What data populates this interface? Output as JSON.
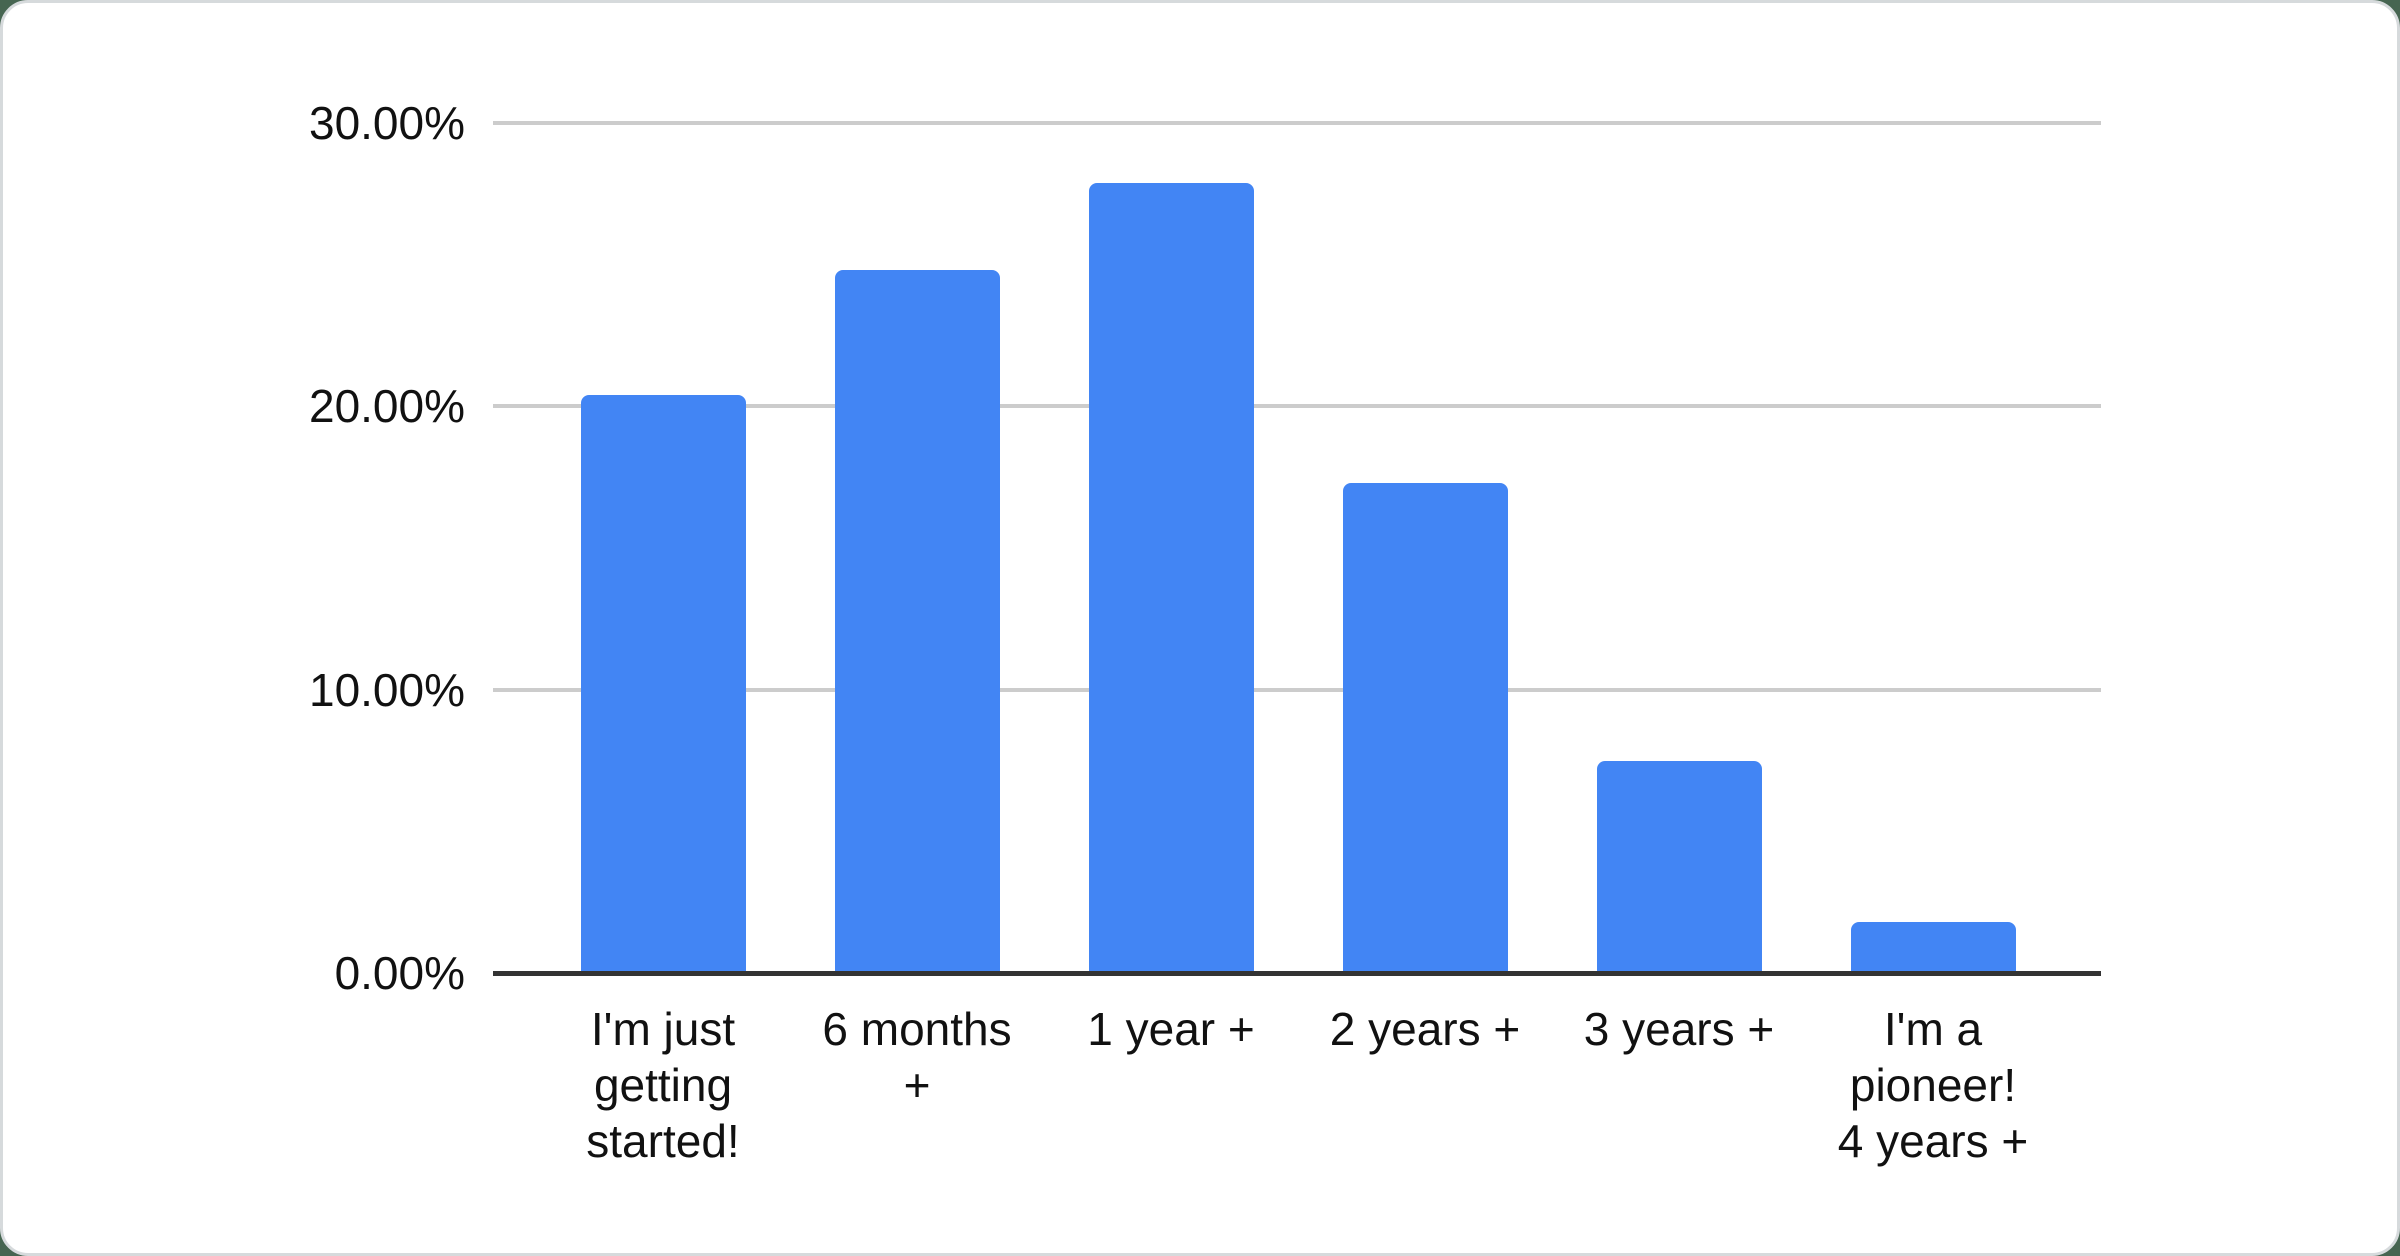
{
  "chart_data": {
    "type": "bar",
    "title": "",
    "xlabel": "",
    "ylabel": "",
    "categories": [
      "I'm just getting started!",
      "6 months +",
      "1 year +",
      "2 years +",
      "3 years +",
      "I'm a pioneer! 4 years +"
    ],
    "category_display_lines": [
      "I'm just\ngetting\nstarted!",
      "6 months\n+",
      "1 year +",
      "2 years +",
      "3 years +",
      "I'm a\npioneer!\n4 years +"
    ],
    "values": [
      20.4,
      24.8,
      27.9,
      17.3,
      7.5,
      1.8
    ],
    "unit": "%",
    "ylim": [
      0,
      30
    ],
    "y_ticks": [
      {
        "value": 30,
        "label": "30.00%"
      },
      {
        "value": 20,
        "label": "20.00%"
      },
      {
        "value": 10,
        "label": "10.00%"
      },
      {
        "value": 0,
        "label": "0.00%"
      }
    ],
    "grid": "horizontal",
    "legend": "none",
    "colors": {
      "bar": "#4285f4",
      "gridline": "#cccccc",
      "axis_line": "#333333",
      "label_text": "#111111",
      "card_background": "#ffffff",
      "card_border": "#d6dadc",
      "page_background": "#466551"
    }
  }
}
